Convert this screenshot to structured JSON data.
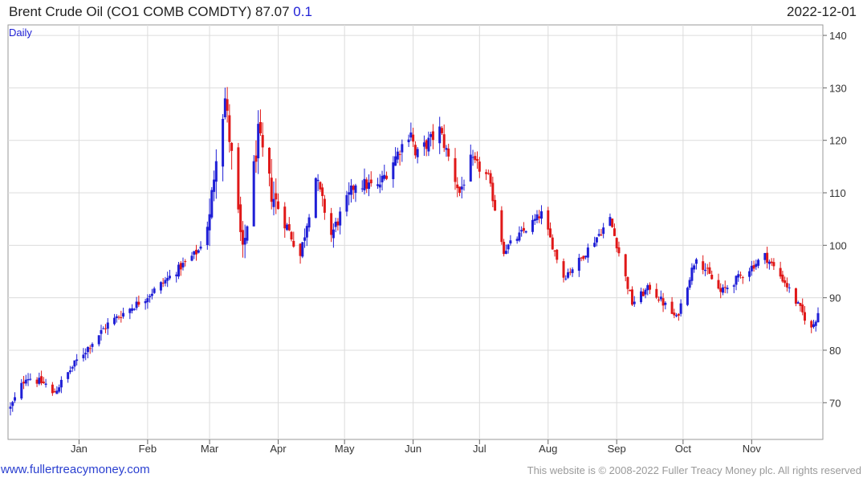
{
  "header": {
    "title": "Brent Crude Oil  (CO1 COMB COMDTY) 87.07",
    "change": "0.1",
    "date": "2022-12-01"
  },
  "footer": {
    "website": "www.fullertreacymoney.com",
    "copyright": "This website is © 2008-2022 Fuller Treacy Money plc. All rights reserved"
  },
  "colors": {
    "up": "#1f1fd6",
    "down": "#e01818",
    "grid": "#dcdcdc"
  },
  "chart_data": {
    "type": "candlestick",
    "period_label": "Daily",
    "ylim": [
      63,
      142
    ],
    "yticks": [
      70,
      80,
      90,
      100,
      110,
      120,
      130,
      140
    ],
    "months": [
      "Jan",
      "Feb",
      "Mar",
      "Apr",
      "May",
      "Jun",
      "Jul",
      "Aug",
      "Sep",
      "Oct",
      "Nov"
    ],
    "grid": true,
    "close_keypoints": [
      {
        "date": "2021-12-01",
        "close": 69
      },
      {
        "date": "2021-12-08",
        "close": 75
      },
      {
        "date": "2021-12-17",
        "close": 73.5
      },
      {
        "date": "2021-12-20",
        "close": 71.5
      },
      {
        "date": "2021-12-31",
        "close": 78
      },
      {
        "date": "2022-01-14",
        "close": 85
      },
      {
        "date": "2022-01-31",
        "close": 90
      },
      {
        "date": "2022-02-11",
        "close": 94
      },
      {
        "date": "2022-02-24",
        "close": 99
      },
      {
        "date": "2022-03-01",
        "close": 105
      },
      {
        "date": "2022-03-04",
        "close": 118
      },
      {
        "date": "2022-03-08",
        "close": 128
      },
      {
        "date": "2022-03-16",
        "close": 98
      },
      {
        "date": "2022-03-23",
        "close": 121
      },
      {
        "date": "2022-03-29",
        "close": 110
      },
      {
        "date": "2022-04-11",
        "close": 98
      },
      {
        "date": "2022-04-18",
        "close": 113
      },
      {
        "date": "2022-04-25",
        "close": 102
      },
      {
        "date": "2022-05-06",
        "close": 112
      },
      {
        "date": "2022-05-16",
        "close": 111
      },
      {
        "date": "2022-05-31",
        "close": 122
      },
      {
        "date": "2022-06-02",
        "close": 117
      },
      {
        "date": "2022-06-13",
        "close": 122
      },
      {
        "date": "2022-06-22",
        "close": 110
      },
      {
        "date": "2022-06-27",
        "close": 116
      },
      {
        "date": "2022-07-05",
        "close": 113
      },
      {
        "date": "2022-07-12",
        "close": 99
      },
      {
        "date": "2022-07-29",
        "close": 106
      },
      {
        "date": "2022-08-08",
        "close": 94
      },
      {
        "date": "2022-08-15",
        "close": 97
      },
      {
        "date": "2022-08-29",
        "close": 105
      },
      {
        "date": "2022-09-08",
        "close": 89
      },
      {
        "date": "2022-09-16",
        "close": 92
      },
      {
        "date": "2022-09-28",
        "close": 86
      },
      {
        "date": "2022-10-07",
        "close": 98
      },
      {
        "date": "2022-10-18",
        "close": 91
      },
      {
        "date": "2022-11-07",
        "close": 98
      },
      {
        "date": "2022-11-16",
        "close": 93
      },
      {
        "date": "2022-11-28",
        "close": 84
      },
      {
        "date": "2022-12-01",
        "close": 87.07
      }
    ]
  }
}
